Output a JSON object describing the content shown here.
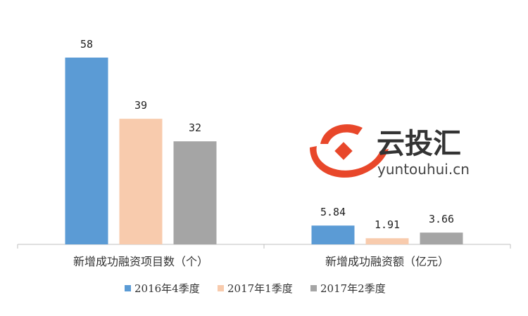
{
  "chart_data": {
    "type": "bar",
    "categories": [
      "新增成功融资项目数（个）",
      "新增成功融资额（亿元）"
    ],
    "series": [
      {
        "name": "2016年4季度",
        "values": [
          58,
          5.84
        ],
        "labels": [
          "58",
          "5.84"
        ],
        "color": "#5b9bd5"
      },
      {
        "name": "2017年1季度",
        "values": [
          39,
          1.91
        ],
        "labels": [
          "39",
          "1.91"
        ],
        "color": "#f8cbad"
      },
      {
        "name": "2017年2季度",
        "values": [
          32,
          3.66
        ],
        "labels": [
          "32",
          "3.66"
        ],
        "color": "#a5a5a5"
      }
    ],
    "group_scales": [
      58,
      58
    ],
    "legend_position": "bottom",
    "grid": false
  },
  "watermark": {
    "title": "云投汇",
    "subtitle": "yuntouhui.cn",
    "accent_color": "#e8472a"
  }
}
